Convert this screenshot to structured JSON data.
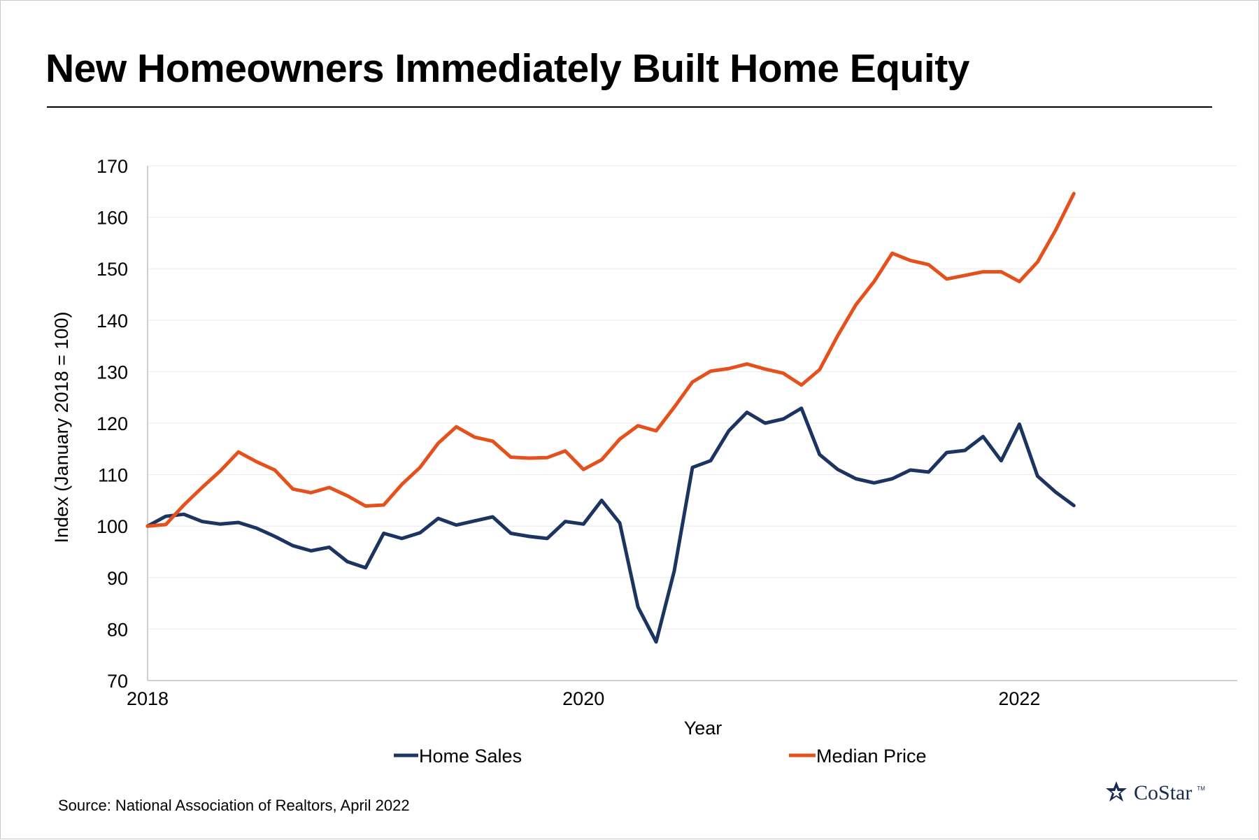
{
  "title": "New Homeowners Immediately Built Home Equity",
  "source": "Source: National Association of Realtors, April 2022",
  "logo": {
    "text": "CoStar",
    "tm": "TM"
  },
  "colors": {
    "home_sales": "#1b3460",
    "median_price": "#e5511c",
    "grid": "#ececec",
    "axis": "#bfbfbf"
  },
  "chart_data": {
    "type": "line",
    "xlabel": "Year",
    "ylabel": "Index (January 2018 = 100)",
    "ylim": [
      70,
      170
    ],
    "yticks": [
      70,
      80,
      90,
      100,
      110,
      120,
      130,
      140,
      150,
      160,
      170
    ],
    "x_ticks": [
      2018,
      2020,
      2022
    ],
    "x_range": [
      "2018-01",
      "2023-01"
    ],
    "x": [
      "2018-01",
      "2018-02",
      "2018-03",
      "2018-04",
      "2018-05",
      "2018-06",
      "2018-07",
      "2018-08",
      "2018-09",
      "2018-10",
      "2018-11",
      "2018-12",
      "2019-01",
      "2019-02",
      "2019-03",
      "2019-04",
      "2019-05",
      "2019-06",
      "2019-07",
      "2019-08",
      "2019-09",
      "2019-10",
      "2019-11",
      "2019-12",
      "2020-01",
      "2020-02",
      "2020-03",
      "2020-04",
      "2020-05",
      "2020-06",
      "2020-07",
      "2020-08",
      "2020-09",
      "2020-10",
      "2020-11",
      "2020-12",
      "2021-01",
      "2021-02",
      "2021-03",
      "2021-04",
      "2021-05",
      "2021-06",
      "2021-07",
      "2021-08",
      "2021-09",
      "2021-10",
      "2021-11",
      "2021-12",
      "2022-01",
      "2022-02",
      "2022-03",
      "2022-04"
    ],
    "grid": true,
    "legend": "bottom",
    "series": [
      {
        "name": "Home Sales",
        "color": "#1b3460",
        "values": [
          100,
          101.9,
          102.3,
          100.9,
          100.4,
          100.7,
          99.6,
          98.0,
          96.2,
          95.2,
          95.9,
          93.1,
          91.9,
          98.6,
          97.6,
          98.7,
          101.5,
          100.2,
          101.0,
          101.8,
          98.6,
          98.0,
          97.6,
          100.9,
          100.4,
          105.0,
          100.6,
          84.3,
          77.5,
          91.3,
          111.4,
          112.7,
          118.5,
          122.1,
          120.0,
          120.8,
          122.9,
          113.9,
          111.0,
          109.2,
          108.4,
          109.2,
          110.9,
          110.5,
          114.3,
          114.7,
          117.4,
          112.7,
          119.8,
          109.7,
          106.6,
          104.0
        ]
      },
      {
        "name": "Median Price",
        "color": "#e5511c",
        "values": [
          100,
          100.3,
          104.1,
          107.5,
          110.7,
          114.4,
          112.5,
          110.9,
          107.2,
          106.5,
          107.5,
          105.9,
          103.9,
          104.1,
          108.1,
          111.4,
          116.1,
          119.3,
          117.3,
          116.5,
          113.4,
          113.2,
          113.3,
          114.6,
          111.0,
          112.9,
          116.9,
          119.5,
          118.5,
          123.1,
          128.0,
          130.1,
          130.6,
          131.5,
          130.5,
          129.7,
          127.4,
          130.4,
          137.0,
          143.0,
          147.5,
          153.0,
          151.6,
          150.8,
          148.0,
          148.7,
          149.4,
          149.4,
          147.5,
          151.3,
          157.5,
          164.6
        ]
      }
    ]
  }
}
